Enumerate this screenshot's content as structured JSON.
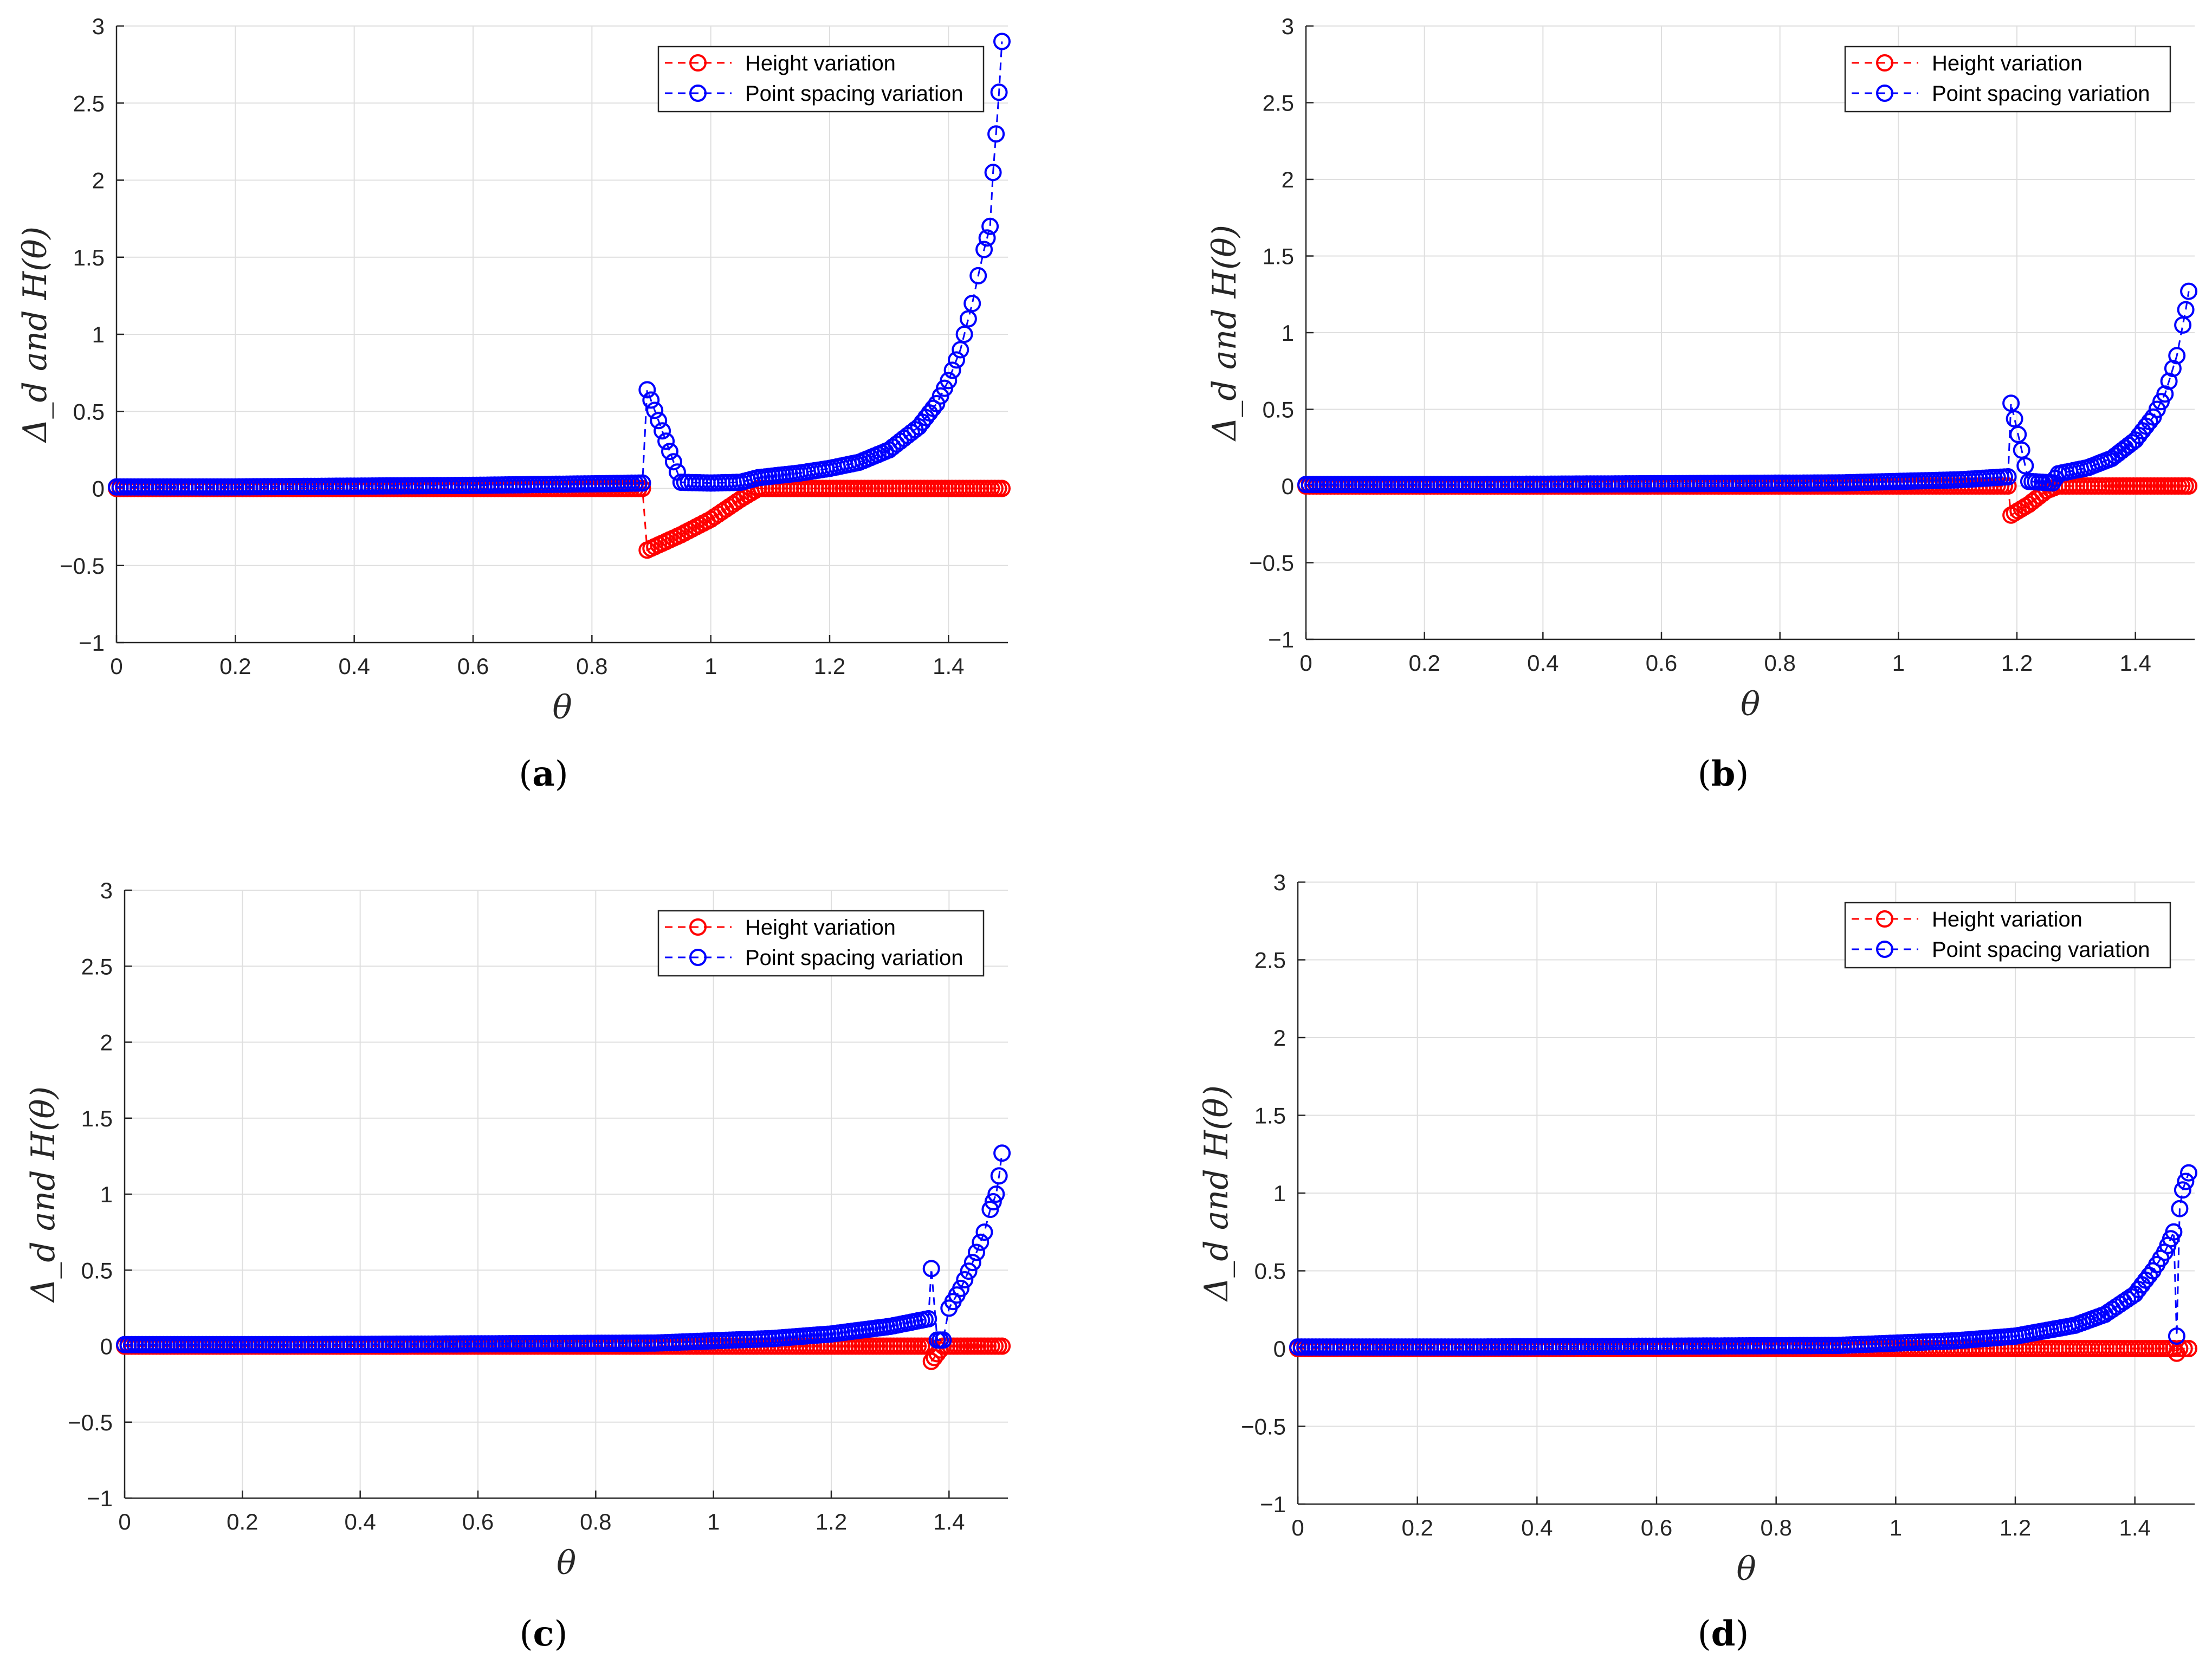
{
  "chart_data": [
    {
      "type": "scatter",
      "panel_label": "a",
      "xlabel": "θ",
      "ylabel": "Δ_d and H(θ)",
      "xlim": [
        0,
        1.5
      ],
      "ylim": [
        -1,
        3
      ],
      "x_ticks": [
        "0",
        "0.2",
        "0.4",
        "0.6",
        "0.8",
        "1",
        "1.2",
        "1.4"
      ],
      "y_ticks": [
        "−1",
        "−0.5",
        "0",
        "0.5",
        "1",
        "1.5",
        "2",
        "2.5",
        "3"
      ],
      "grid": true,
      "legend_position": "top-right",
      "series": [
        {
          "name": "Height variation",
          "color": "#ff0000",
          "points": [
            [
              0,
              0
            ],
            [
              0.2,
              0
            ],
            [
              0.4,
              0
            ],
            [
              0.6,
              0
            ],
            [
              0.8,
              0
            ],
            [
              0.885,
              0
            ],
            [
              0.893,
              -0.4
            ],
            [
              0.95,
              -0.3
            ],
            [
              1.0,
              -0.2
            ],
            [
              1.05,
              -0.07
            ],
            [
              1.08,
              0
            ],
            [
              1.2,
              0
            ],
            [
              1.3,
              0
            ],
            [
              1.4,
              0
            ],
            [
              1.49,
              0
            ]
          ]
        },
        {
          "name": "Point spacing variation",
          "color": "#0000ff",
          "points": [
            [
              0,
              0.01
            ],
            [
              0.2,
              0.01
            ],
            [
              0.4,
              0.015
            ],
            [
              0.6,
              0.02
            ],
            [
              0.8,
              0.03
            ],
            [
              0.885,
              0.035
            ],
            [
              0.893,
              0.64
            ],
            [
              0.95,
              0.04
            ],
            [
              1.0,
              0.035
            ],
            [
              1.05,
              0.04
            ],
            [
              1.08,
              0.07
            ],
            [
              1.15,
              0.1
            ],
            [
              1.2,
              0.13
            ],
            [
              1.25,
              0.17
            ],
            [
              1.3,
              0.25
            ],
            [
              1.35,
              0.4
            ],
            [
              1.38,
              0.55
            ],
            [
              1.4,
              0.7
            ],
            [
              1.42,
              0.9
            ],
            [
              1.44,
              1.2
            ],
            [
              1.45,
              1.38
            ],
            [
              1.46,
              1.55
            ],
            [
              1.47,
              1.7
            ],
            [
              1.475,
              2.05
            ],
            [
              1.48,
              2.3
            ],
            [
              1.485,
              2.57
            ],
            [
              1.49,
              2.9
            ]
          ]
        }
      ]
    },
    {
      "type": "scatter",
      "panel_label": "b",
      "xlabel": "θ",
      "ylabel": "Δ_d and H(θ)",
      "xlim": [
        0,
        1.5
      ],
      "ylim": [
        -1,
        3
      ],
      "x_ticks": [
        "0",
        "0.2",
        "0.4",
        "0.6",
        "0.8",
        "1",
        "1.2",
        "1.4"
      ],
      "y_ticks": [
        "−1",
        "−0.5",
        "0",
        "0.5",
        "1",
        "1.5",
        "2",
        "2.5",
        "3"
      ],
      "grid": true,
      "legend_position": "top-right",
      "series": [
        {
          "name": "Height variation",
          "color": "#ff0000",
          "points": [
            [
              0,
              0
            ],
            [
              0.3,
              0
            ],
            [
              0.6,
              0
            ],
            [
              0.9,
              0
            ],
            [
              1.1,
              0
            ],
            [
              1.185,
              0
            ],
            [
              1.19,
              -0.19
            ],
            [
              1.22,
              -0.12
            ],
            [
              1.25,
              -0.03
            ],
            [
              1.27,
              0
            ],
            [
              1.35,
              0
            ],
            [
              1.42,
              0
            ],
            [
              1.49,
              0
            ]
          ]
        },
        {
          "name": "Point spacing variation",
          "color": "#0000ff",
          "points": [
            [
              0,
              0.01
            ],
            [
              0.3,
              0.01
            ],
            [
              0.6,
              0.015
            ],
            [
              0.9,
              0.02
            ],
            [
              1.1,
              0.04
            ],
            [
              1.185,
              0.06
            ],
            [
              1.19,
              0.54
            ],
            [
              1.22,
              0.03
            ],
            [
              1.26,
              0.02
            ],
            [
              1.27,
              0.08
            ],
            [
              1.32,
              0.12
            ],
            [
              1.36,
              0.18
            ],
            [
              1.4,
              0.3
            ],
            [
              1.43,
              0.45
            ],
            [
              1.45,
              0.6
            ],
            [
              1.47,
              0.85
            ],
            [
              1.48,
              1.05
            ],
            [
              1.485,
              1.15
            ],
            [
              1.49,
              1.27
            ]
          ]
        }
      ]
    },
    {
      "type": "scatter",
      "panel_label": "c",
      "xlabel": "θ",
      "ylabel": "Δ_d and H(θ)",
      "xlim": [
        0,
        1.5
      ],
      "ylim": [
        -1,
        3
      ],
      "x_ticks": [
        "0",
        "0.2",
        "0.4",
        "0.6",
        "0.8",
        "1",
        "1.2",
        "1.4"
      ],
      "y_ticks": [
        "−1",
        "−0.5",
        "0",
        "0.5",
        "1",
        "1.5",
        "2",
        "2.5",
        "3"
      ],
      "grid": true,
      "legend_position": "top-right",
      "series": [
        {
          "name": "Height variation",
          "color": "#ff0000",
          "points": [
            [
              0,
              0
            ],
            [
              0.3,
              0
            ],
            [
              0.6,
              0
            ],
            [
              0.9,
              0
            ],
            [
              1.2,
              0
            ],
            [
              1.365,
              0
            ],
            [
              1.37,
              -0.1
            ],
            [
              1.38,
              -0.05
            ],
            [
              1.39,
              0
            ],
            [
              1.42,
              0
            ],
            [
              1.46,
              0
            ],
            [
              1.49,
              0
            ]
          ]
        },
        {
          "name": "Point spacing variation",
          "color": "#0000ff",
          "points": [
            [
              0,
              0.01
            ],
            [
              0.3,
              0.01
            ],
            [
              0.6,
              0.015
            ],
            [
              0.9,
              0.02
            ],
            [
              1.1,
              0.05
            ],
            [
              1.2,
              0.08
            ],
            [
              1.3,
              0.13
            ],
            [
              1.365,
              0.18
            ],
            [
              1.37,
              0.51
            ],
            [
              1.38,
              0.04
            ],
            [
              1.39,
              0.04
            ],
            [
              1.4,
              0.25
            ],
            [
              1.42,
              0.38
            ],
            [
              1.44,
              0.55
            ],
            [
              1.46,
              0.75
            ],
            [
              1.47,
              0.9
            ],
            [
              1.48,
              1.0
            ],
            [
              1.485,
              1.12
            ],
            [
              1.49,
              1.27
            ]
          ]
        }
      ]
    },
    {
      "type": "scatter",
      "panel_label": "d",
      "xlabel": "θ",
      "ylabel": "Δ_d and H(θ)",
      "xlim": [
        0,
        1.5
      ],
      "ylim": [
        -1,
        3
      ],
      "x_ticks": [
        "0",
        "0.2",
        "0.4",
        "0.6",
        "0.8",
        "1",
        "1.2",
        "1.4"
      ],
      "y_ticks": [
        "−1",
        "−0.5",
        "0",
        "0.5",
        "1",
        "1.5",
        "2",
        "2.5",
        "3"
      ],
      "grid": true,
      "legend_position": "top-right",
      "series": [
        {
          "name": "Height variation",
          "color": "#ff0000",
          "points": [
            [
              0,
              0
            ],
            [
              0.3,
              0
            ],
            [
              0.6,
              0
            ],
            [
              0.9,
              0
            ],
            [
              1.2,
              0
            ],
            [
              1.4,
              0
            ],
            [
              1.465,
              0
            ],
            [
              1.47,
              -0.03
            ],
            [
              1.475,
              0
            ],
            [
              1.49,
              0
            ]
          ]
        },
        {
          "name": "Point spacing variation",
          "color": "#0000ff",
          "points": [
            [
              0,
              0.01
            ],
            [
              0.3,
              0.01
            ],
            [
              0.6,
              0.015
            ],
            [
              0.9,
              0.02
            ],
            [
              1.1,
              0.05
            ],
            [
              1.2,
              0.08
            ],
            [
              1.3,
              0.15
            ],
            [
              1.35,
              0.22
            ],
            [
              1.4,
              0.35
            ],
            [
              1.43,
              0.5
            ],
            [
              1.45,
              0.62
            ],
            [
              1.465,
              0.75
            ],
            [
              1.47,
              0.08
            ],
            [
              1.475,
              0.9
            ],
            [
              1.48,
              1.02
            ],
            [
              1.49,
              1.13
            ]
          ]
        }
      ]
    }
  ]
}
